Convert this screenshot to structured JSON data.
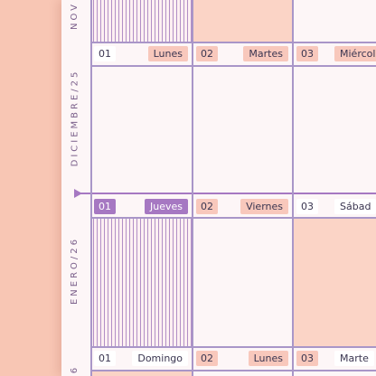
{
  "months": {
    "top": "NOV",
    "middle": "DICIEMBRE/25",
    "bottom": "ENERO/26",
    "edge": "6"
  },
  "rows": [
    {
      "cells": [
        {
          "num": "01",
          "day": "Lunes"
        },
        {
          "num": "02",
          "day": "Martes"
        },
        {
          "num": "03",
          "day": "Miércol"
        }
      ]
    },
    {
      "cells": [
        {
          "num": "01",
          "day": "Jueves"
        },
        {
          "num": "02",
          "day": "Viernes"
        },
        {
          "num": "03",
          "day": "Sábad"
        }
      ]
    },
    {
      "cells": [
        {
          "num": "01",
          "day": "Domingo"
        },
        {
          "num": "02",
          "day": "Lunes"
        },
        {
          "num": "03",
          "day": "Marte"
        }
      ]
    }
  ],
  "colors": {
    "accent": "#a678c2",
    "grid": "#a996c8",
    "peach": "#fbd4c6",
    "background": "#f8c6b4"
  }
}
